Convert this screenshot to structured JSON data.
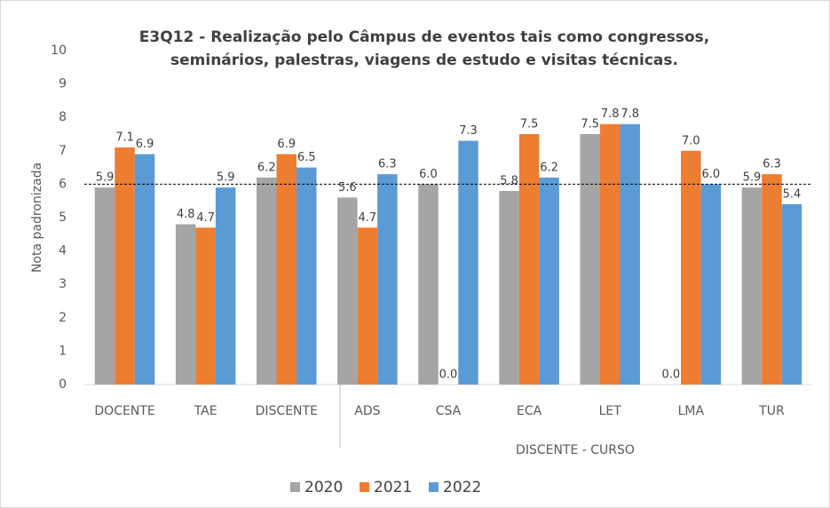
{
  "chart_data": {
    "type": "bar",
    "title": [
      "E3Q12 - Realização pelo Câmpus de eventos tais como congressos,",
      "seminários, palestras, viagens de estudo e visitas técnicas."
    ],
    "y_label": "Nota padronizada",
    "group_label": "DISCENTE - CURSO",
    "categories": [
      "DOCENTE",
      "TAE",
      "DISCENTE",
      "ADS",
      "CSA",
      "ECA",
      "LET",
      "LMA",
      "TUR"
    ],
    "series": [
      {
        "name": "2020",
        "color": "#a5a5a5",
        "values": [
          5.9,
          4.8,
          6.2,
          5.6,
          6.0,
          5.8,
          7.5,
          0,
          5.9
        ],
        "value_labels": [
          "5.9",
          "4.8",
          "6.2",
          "5.6",
          "6.0",
          "5.8",
          "7.5",
          "0.0",
          "5.9"
        ]
      },
      {
        "name": "2021",
        "color": "#ed7d31",
        "values": [
          7.1,
          4.7,
          6.9,
          4.7,
          0,
          7.5,
          7.8,
          7.0,
          6.3
        ],
        "value_labels": [
          "7.1",
          "4.7",
          "6.9",
          "4.7",
          "0.0",
          "7.5",
          "7.8",
          "7.0",
          "6.3"
        ]
      },
      {
        "name": "2022",
        "color": "#5b9bd5",
        "values": [
          6.9,
          5.9,
          6.5,
          6.3,
          7.3,
          6.2,
          7.8,
          6.0,
          5.4
        ],
        "value_labels": [
          "6.9",
          "5.9",
          "6.5",
          "6.3",
          "7.3",
          "6.2",
          "7.8",
          "6.0",
          "5.4"
        ]
      }
    ],
    "reference_line": 6,
    "ylim": [
      0,
      10
    ],
    "yticks": [
      0,
      1,
      2,
      3,
      4,
      5,
      6,
      7,
      8,
      9,
      10
    ],
    "grid": false,
    "legend": "bottom"
  }
}
